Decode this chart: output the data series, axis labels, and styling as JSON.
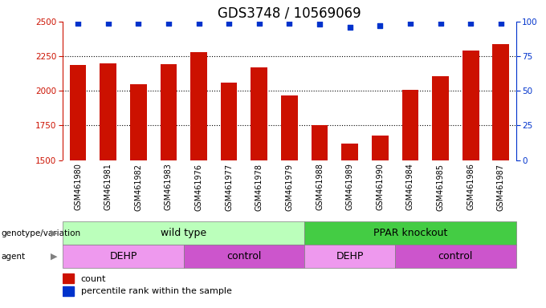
{
  "title": "GDS3748 / 10569069",
  "samples": [
    "GSM461980",
    "GSM461981",
    "GSM461982",
    "GSM461983",
    "GSM461976",
    "GSM461977",
    "GSM461978",
    "GSM461979",
    "GSM461988",
    "GSM461989",
    "GSM461990",
    "GSM461984",
    "GSM461985",
    "GSM461986",
    "GSM461987"
  ],
  "counts": [
    2185,
    2200,
    2050,
    2190,
    2280,
    2060,
    2170,
    1965,
    1755,
    1620,
    1680,
    2010,
    2105,
    2290,
    2340
  ],
  "percentile_ranks": [
    99,
    99,
    99,
    99,
    99,
    99,
    99,
    99,
    98,
    96,
    97,
    99,
    99,
    99,
    99
  ],
  "ylim_left": [
    1500,
    2500
  ],
  "ylim_right": [
    0,
    100
  ],
  "yticks_left": [
    1500,
    1750,
    2000,
    2250,
    2500
  ],
  "yticks_right": [
    0,
    25,
    50,
    75,
    100
  ],
  "bar_color": "#cc1100",
  "dot_color": "#0033cc",
  "bar_width": 0.55,
  "genotype_groups": [
    {
      "label": "wild type",
      "start": 0,
      "end": 7,
      "color": "#bbffbb"
    },
    {
      "label": "PPAR knockout",
      "start": 8,
      "end": 14,
      "color": "#44cc44"
    }
  ],
  "agent_groups": [
    {
      "label": "DEHP",
      "start": 0,
      "end": 3,
      "color": "#ee99ee"
    },
    {
      "label": "control",
      "start": 4,
      "end": 7,
      "color": "#cc55cc"
    },
    {
      "label": "DEHP",
      "start": 8,
      "end": 10,
      "color": "#ee99ee"
    },
    {
      "label": "control",
      "start": 11,
      "end": 14,
      "color": "#cc55cc"
    }
  ],
  "title_fontsize": 12,
  "tick_fontsize": 7.5,
  "label_fontsize": 9,
  "sample_label_fontsize": 7
}
